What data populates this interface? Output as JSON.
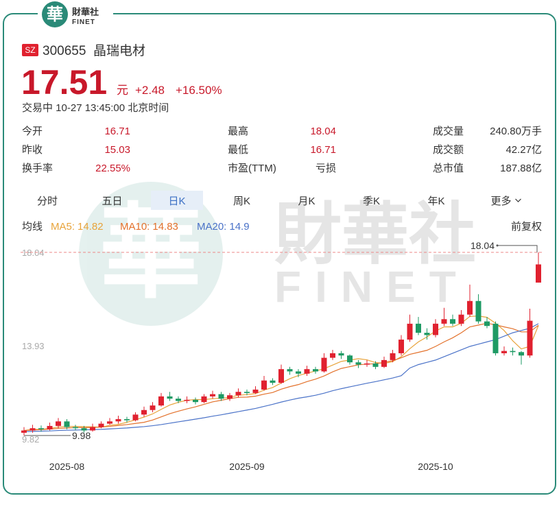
{
  "logo": {
    "mark": "華",
    "name": "財華社",
    "sub": "FINET"
  },
  "watermark": {
    "name": "財華社",
    "sub": "FINET"
  },
  "quote": {
    "market": "SZ",
    "code": "300655",
    "name": "晶瑞电材",
    "price": "17.51",
    "unit": "元",
    "change": "+2.48",
    "change_pct": "+16.50%",
    "status": "交易中 10-27 13:45:00 北京时间"
  },
  "stats": [
    [
      [
        "今开",
        "16.71"
      ],
      [
        "最高",
        "18.04"
      ],
      [
        "成交量",
        "240.80万手"
      ]
    ],
    [
      [
        "昨收",
        "15.03"
      ],
      [
        "最低",
        "16.71"
      ],
      [
        "成交额",
        "42.27亿"
      ]
    ],
    [
      [
        "换手率",
        "22.55%"
      ],
      [
        "市盈(TTM)",
        "亏损"
      ],
      [
        "总市值",
        "187.88亿"
      ]
    ]
  ],
  "tabs": [
    "分时",
    "五日",
    "日K",
    "周K",
    "月K",
    "季K",
    "年K",
    "更多"
  ],
  "active_tab": 2,
  "chart_data": {
    "type": "candlestick",
    "legend_title": "均线",
    "adjust_label": "前复权",
    "categories": [
      null,
      null,
      null,
      null,
      null,
      "2025-08",
      null,
      null,
      null,
      null,
      null,
      null,
      null,
      null,
      null,
      null,
      null,
      null,
      null,
      null,
      null,
      null,
      null,
      null,
      null,
      null,
      "2025-09",
      null,
      null,
      null,
      null,
      null,
      null,
      null,
      null,
      null,
      null,
      null,
      null,
      null,
      null,
      null,
      null,
      null,
      null,
      null,
      null,
      null,
      "2025-10",
      null,
      null,
      null,
      null,
      null,
      null,
      null,
      null,
      null,
      null,
      null,
      null
    ],
    "open": [
      10.1,
      10.2,
      10.3,
      10.25,
      10.4,
      10.6,
      10.35,
      10.3,
      10.2,
      10.35,
      10.5,
      10.6,
      10.7,
      10.65,
      10.9,
      11.1,
      11.3,
      11.7,
      11.6,
      11.5,
      11.55,
      11.45,
      11.7,
      11.8,
      11.6,
      11.75,
      11.9,
      11.85,
      12.0,
      12.4,
      12.3,
      12.9,
      12.8,
      12.7,
      12.9,
      12.8,
      13.4,
      13.6,
      13.5,
      13.2,
      13.1,
      13.15,
      13.0,
      13.3,
      13.6,
      14.2,
      14.9,
      14.5,
      14.4,
      14.9,
      15.1,
      14.9,
      15.3,
      15.9,
      15.0,
      14.9,
      13.6,
      13.7,
      13.65,
      13.5,
      16.71
    ],
    "high": [
      10.35,
      10.45,
      10.42,
      10.55,
      10.75,
      10.7,
      10.45,
      10.4,
      10.5,
      10.6,
      10.75,
      10.85,
      10.8,
      11.0,
      11.25,
      11.45,
      11.85,
      11.9,
      11.7,
      11.7,
      11.65,
      11.8,
      11.95,
      11.9,
      11.85,
      12.05,
      12.0,
      12.15,
      12.6,
      12.5,
      13.1,
      13.0,
      12.9,
      13.05,
      13.0,
      13.6,
      13.75,
      13.7,
      13.55,
      13.3,
      13.3,
      13.25,
      13.45,
      13.75,
      14.4,
      15.3,
      15.2,
      14.7,
      15.1,
      15.6,
      15.3,
      15.5,
      16.62,
      16.2,
      15.2,
      15.0,
      13.9,
      13.85,
      13.7,
      15.56,
      18.04
    ],
    "low": [
      9.98,
      10.1,
      10.15,
      10.2,
      10.3,
      10.25,
      10.2,
      10.11,
      10.15,
      10.3,
      10.45,
      10.5,
      10.55,
      10.6,
      10.8,
      11.0,
      11.25,
      11.5,
      11.4,
      11.4,
      11.35,
      11.4,
      11.6,
      11.5,
      11.5,
      11.65,
      11.75,
      11.8,
      11.95,
      12.2,
      12.25,
      12.65,
      12.55,
      12.6,
      12.7,
      12.75,
      13.3,
      13.35,
      13.1,
      12.95,
      13.0,
      12.9,
      12.95,
      13.2,
      13.5,
      14.1,
      14.4,
      14.2,
      14.3,
      14.8,
      14.8,
      14.8,
      15.2,
      14.9,
      14.7,
      13.5,
      13.5,
      13.5,
      13.1,
      13.4,
      16.71
    ],
    "close": [
      10.2,
      10.3,
      10.25,
      10.4,
      10.6,
      10.35,
      10.3,
      10.2,
      10.35,
      10.5,
      10.6,
      10.7,
      10.65,
      10.9,
      11.1,
      11.3,
      11.7,
      11.6,
      11.5,
      11.55,
      11.45,
      11.7,
      11.8,
      11.6,
      11.75,
      11.9,
      11.85,
      12.0,
      12.4,
      12.3,
      12.9,
      12.8,
      12.7,
      12.9,
      12.8,
      13.4,
      13.6,
      13.5,
      13.2,
      13.1,
      13.15,
      13.0,
      13.3,
      13.6,
      14.2,
      14.9,
      14.5,
      14.4,
      14.9,
      15.1,
      14.9,
      15.3,
      15.9,
      15.0,
      14.8,
      13.6,
      13.7,
      13.65,
      13.5,
      15.03,
      17.51
    ],
    "up_color": "#e0212f",
    "down_color": "#1e9a64",
    "series": [
      {
        "name": "MA5:",
        "color": "#e8a33a",
        "values": [
          10.2,
          10.25,
          10.25,
          10.29,
          10.35,
          10.38,
          10.38,
          10.37,
          10.36,
          10.34,
          10.43,
          10.47,
          10.56,
          10.67,
          10.79,
          10.93,
          11.13,
          11.32,
          11.44,
          11.53,
          11.56,
          11.56,
          11.6,
          11.62,
          11.66,
          11.75,
          11.78,
          11.82,
          11.98,
          12.09,
          12.29,
          12.48,
          12.62,
          12.72,
          12.82,
          12.92,
          13.08,
          13.24,
          13.3,
          13.36,
          13.31,
          13.19,
          13.15,
          13.23,
          13.45,
          13.8,
          14.1,
          14.32,
          14.58,
          14.76,
          14.76,
          14.92,
          15.22,
          15.24,
          15.18,
          14.92,
          14.6,
          14.15,
          13.79,
          13.9,
          14.82
        ]
      },
      {
        "name": "MA10:",
        "color": "#e3712b",
        "values": [
          10.2,
          10.22,
          10.24,
          10.26,
          10.29,
          10.31,
          10.33,
          10.33,
          10.33,
          10.35,
          10.38,
          10.42,
          10.46,
          10.51,
          10.56,
          10.66,
          10.8,
          10.94,
          11.05,
          11.15,
          11.24,
          11.35,
          11.46,
          11.53,
          11.6,
          11.66,
          11.67,
          11.71,
          11.8,
          11.87,
          12.02,
          12.13,
          12.22,
          12.35,
          12.46,
          12.6,
          12.78,
          12.93,
          13.01,
          13.09,
          13.12,
          13.14,
          13.2,
          13.27,
          13.4,
          13.55,
          13.64,
          13.73,
          13.9,
          14.1,
          14.28,
          14.5,
          14.76,
          14.84,
          14.92,
          14.85,
          14.76,
          14.68,
          14.54,
          14.54,
          14.83
        ]
      },
      {
        "name": "MA20:",
        "color": "#4a72c8",
        "values": [
          10.15,
          10.16,
          10.17,
          10.18,
          10.2,
          10.21,
          10.22,
          10.23,
          10.24,
          10.25,
          10.27,
          10.29,
          10.31,
          10.34,
          10.37,
          10.41,
          10.46,
          10.52,
          10.58,
          10.64,
          10.7,
          10.76,
          10.83,
          10.89,
          10.96,
          11.03,
          11.1,
          11.17,
          11.26,
          11.35,
          11.45,
          11.54,
          11.62,
          11.68,
          11.75,
          11.84,
          11.95,
          12.04,
          12.12,
          12.2,
          12.28,
          12.35,
          12.43,
          12.51,
          12.61,
          12.95,
          13.1,
          13.2,
          13.3,
          13.45,
          13.6,
          13.75,
          13.9,
          14.0,
          14.1,
          14.2,
          14.35,
          14.5,
          14.6,
          14.7,
          14.9
        ]
      }
    ],
    "ylim": [
      9.22,
      18.58
    ],
    "yticks": [
      18.04,
      13.93,
      9.82
    ],
    "grid": false
  }
}
